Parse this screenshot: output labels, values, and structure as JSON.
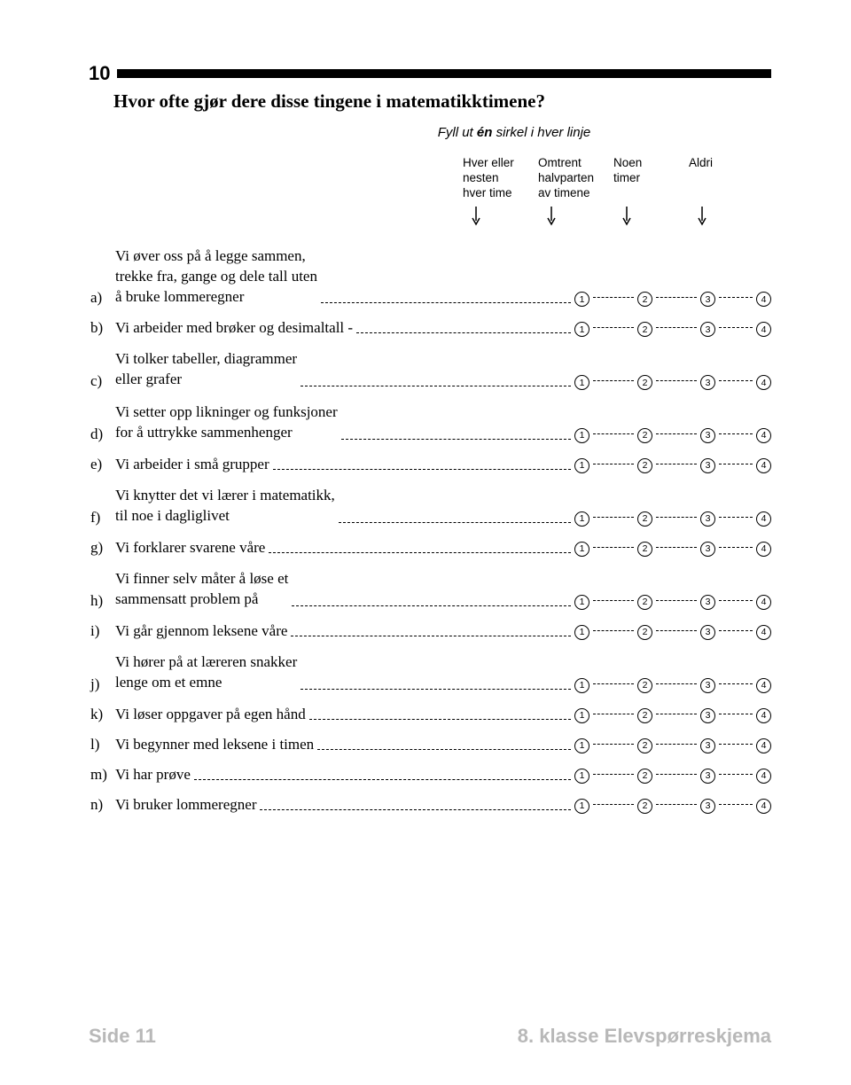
{
  "question_number": "10",
  "title": "Hvor ofte gjør dere disse tingene i matematikktimene?",
  "instruction_prefix": "Fyll ut ",
  "instruction_bold": "én",
  "instruction_suffix": " sirkel i hver linje",
  "headers": {
    "col1": "Hver eller\nnesten\nhver time",
    "col2": "Omtrent\nhalvparten\nav timene",
    "col3": "Noen\ntimer",
    "col4": "Aldri"
  },
  "option_numbers": [
    "1",
    "2",
    "3",
    "4"
  ],
  "items": [
    {
      "label": "a)",
      "text": "Vi øver oss på å legge sammen,\ntrekke fra, gange og dele tall uten\nå bruke lommeregner",
      "lines": 3
    },
    {
      "label": "b)",
      "text": "Vi arbeider med brøker og desimaltall",
      "lines": 1,
      "sep": "-"
    },
    {
      "label": "c)",
      "text": "Vi tolker tabeller, diagrammer\neller grafer",
      "lines": 2
    },
    {
      "label": "d)",
      "text": "Vi setter opp likninger og funksjoner\nfor å uttrykke sammenhenger",
      "lines": 2
    },
    {
      "label": "e)",
      "text": "Vi arbeider i små grupper",
      "lines": 1
    },
    {
      "label": "f)",
      "text": "Vi knytter det vi lærer i matematikk,\ntil noe i dagliglivet",
      "lines": 2
    },
    {
      "label": "g)",
      "text": "Vi forklarer svarene våre",
      "lines": 1
    },
    {
      "label": "h)",
      "text": "Vi finner selv måter å løse et\nsammensatt problem på",
      "lines": 2
    },
    {
      "label": "i)",
      "text": "Vi går gjennom leksene våre",
      "lines": 1
    },
    {
      "label": "j)",
      "text": "Vi hører på at læreren snakker\nlenge om et emne",
      "lines": 2
    },
    {
      "label": "k)",
      "text": "Vi løser oppgaver på egen hånd",
      "lines": 1
    },
    {
      "label": "l)",
      "text": "Vi begynner med leksene i timen",
      "lines": 1
    },
    {
      "label": "m)",
      "text": "Vi har prøve",
      "lines": 1
    },
    {
      "label": "n)",
      "text": "Vi bruker lommeregner",
      "lines": 1
    }
  ],
  "footer_left": "Side 11",
  "footer_right": "8. klasse  Elevspørreskjema"
}
